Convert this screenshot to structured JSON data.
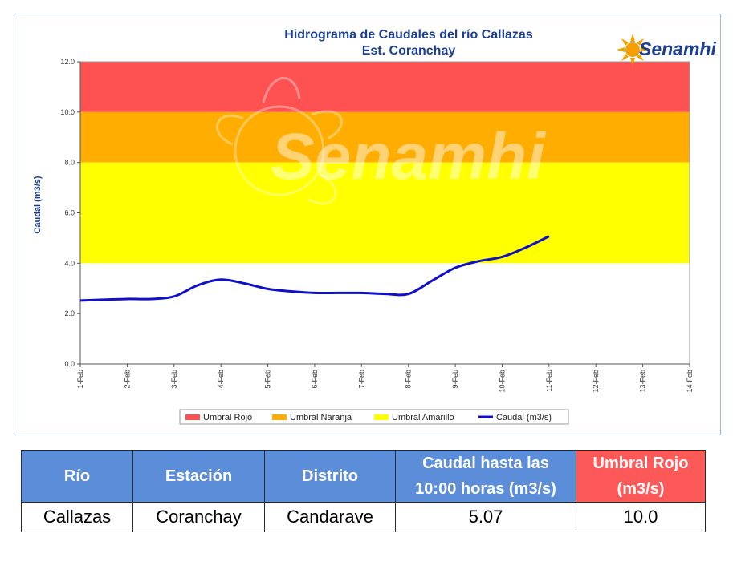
{
  "chart_data": {
    "type": "line",
    "title": "Hidrograma de Caudales del río Callazas",
    "subtitle": "Est. Coranchay",
    "ylabel": "Caudal (m3/s)",
    "ylim": [
      0,
      12
    ],
    "yticks": [
      "0.0",
      "2.0",
      "4.0",
      "6.0",
      "8.0",
      "10.0",
      "12.0"
    ],
    "categories": [
      "1-Feb",
      "2-Feb",
      "3-Feb",
      "4-Feb",
      "5-Feb",
      "6-Feb",
      "7-Feb",
      "8-Feb",
      "9-Feb",
      "10-Feb",
      "11-Feb",
      "12-Feb",
      "13-Feb",
      "14-Feb"
    ],
    "series": [
      {
        "name": "Caudal (m3/s)",
        "color": "#1010c8",
        "x": [
          1,
          1.5,
          2,
          2.5,
          3,
          3.5,
          4,
          4.5,
          5,
          5.5,
          6,
          6.5,
          7,
          7.5,
          8,
          8.5,
          9,
          9.5,
          10,
          10.5,
          11
        ],
        "values": [
          2.52,
          2.55,
          2.58,
          2.58,
          2.68,
          3.12,
          3.35,
          3.2,
          2.98,
          2.88,
          2.82,
          2.82,
          2.82,
          2.78,
          2.78,
          3.3,
          3.82,
          4.08,
          4.25,
          4.62,
          5.07
        ]
      }
    ],
    "bands": [
      {
        "name": "Umbral Rojo",
        "from": 10,
        "to": 12,
        "color": "#fe5252"
      },
      {
        "name": "Umbral Naranja",
        "from": 8,
        "to": 10,
        "color": "#ffad00"
      },
      {
        "name": "Umbral Amarillo",
        "from": 4,
        "to": 8,
        "color": "#ffff00"
      }
    ],
    "legend": [
      {
        "label": "Umbral Rojo",
        "color": "#fe5252",
        "kind": "box"
      },
      {
        "label": "Umbral Naranja",
        "color": "#ffad00",
        "kind": "box"
      },
      {
        "label": "Umbral Amarillo",
        "color": "#ffff00",
        "kind": "box"
      },
      {
        "label": "Caudal (m3/s)",
        "color": "#1010c8",
        "kind": "line"
      }
    ],
    "legend_position": "bottom",
    "grid": false
  },
  "logo": {
    "text": "Senamhi",
    "sun_color": "#f5a000",
    "text_color": "#1c3f94"
  },
  "watermark": "Senamhi",
  "table": {
    "headers": [
      "Río",
      "Estación",
      "Distrito",
      "Caudal hasta las 10:00 horas (m3/s)",
      "Umbral Rojo (m3/s)"
    ],
    "row": [
      "Callazas",
      "Coranchay",
      "Candarave",
      "5.07",
      "10.0"
    ]
  }
}
